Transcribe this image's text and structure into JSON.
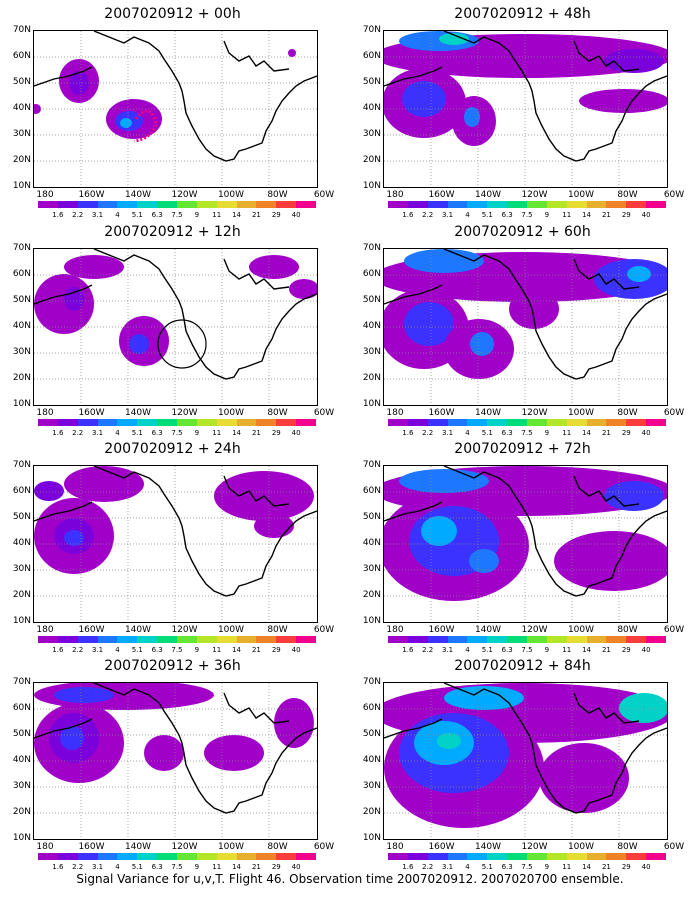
{
  "panels": [
    {
      "title": "2007020912 + 00h"
    },
    {
      "title": "2007020912 + 48h"
    },
    {
      "title": "2007020912 + 12h"
    },
    {
      "title": "2007020912 + 60h"
    },
    {
      "title": "2007020912 + 24h"
    },
    {
      "title": "2007020912 + 72h"
    },
    {
      "title": "2007020912 + 36h"
    },
    {
      "title": "2007020912 + 84h"
    }
  ],
  "axes": {
    "lat_labels": [
      "70N",
      "60N",
      "50N",
      "40N",
      "30N",
      "20N",
      "10N"
    ],
    "lon_labels": [
      "180",
      "160W",
      "140W",
      "120W",
      "100W",
      "80W",
      "60W"
    ]
  },
  "colorbar": {
    "labels": [
      "1.6",
      "2.2",
      "3.1",
      "4",
      "5.1",
      "6.3",
      "7.5",
      "9",
      "11",
      "14",
      "21",
      "29",
      "40"
    ],
    "colors": [
      "#a000c8",
      "#7a00dc",
      "#3c32ff",
      "#1e78ff",
      "#00aaff",
      "#00d2c8",
      "#00dc78",
      "#64e632",
      "#b4e628",
      "#e6dc32",
      "#e6af2d",
      "#f08228",
      "#fa3c3c",
      "#f0008c"
    ]
  },
  "caption": "Signal Variance for u,v,T. Flight 46. Observation time 2007020912. 2007020700 ensemble."
}
